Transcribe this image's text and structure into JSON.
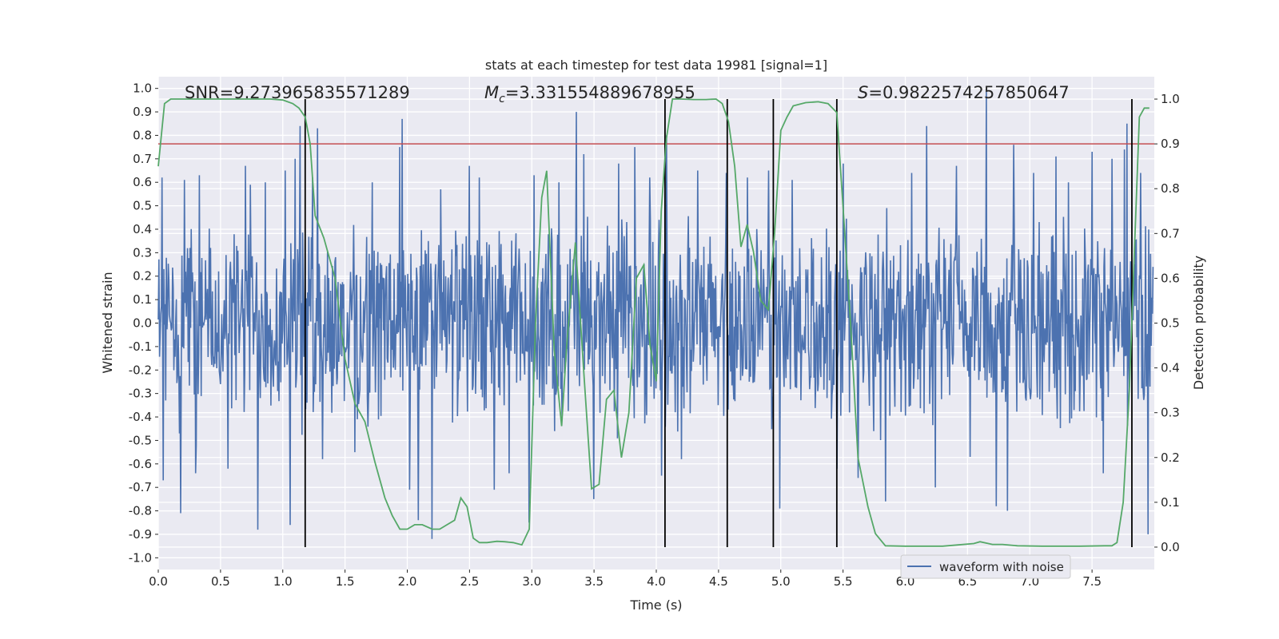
{
  "chart_data": {
    "type": "line",
    "title": "stats at each timestep for test data 19981 [signal=1]",
    "xlabel": "Time (s)",
    "ylabel": "Whitened strain",
    "y2label": "Detection probability",
    "xlim": [
      0.0,
      8.0
    ],
    "ylim": [
      -1.05,
      1.05
    ],
    "y2lim": [
      -0.05,
      1.05
    ],
    "xticks": [
      "0.0",
      "0.5",
      "1.0",
      "1.5",
      "2.0",
      "2.5",
      "3.0",
      "3.5",
      "4.0",
      "4.5",
      "5.0",
      "5.5",
      "6.0",
      "6.5",
      "7.0",
      "7.5"
    ],
    "yticks": [
      "-1.0",
      "-0.9",
      "-0.8",
      "-0.7",
      "-0.6",
      "-0.5",
      "-0.4",
      "-0.3",
      "-0.2",
      "-0.1",
      "0.0",
      "0.1",
      "0.2",
      "0.3",
      "0.4",
      "0.5",
      "0.6",
      "0.7",
      "0.8",
      "0.9",
      "1.0"
    ],
    "y2ticks": [
      "0.0",
      "0.1",
      "0.2",
      "0.3",
      "0.4",
      "0.5",
      "0.6",
      "0.7",
      "0.8",
      "0.9",
      "1.0"
    ],
    "annotations": {
      "snr": "SNR=9.273965835571289",
      "mc_symbol": "M",
      "mc_sub": "c",
      "mc_value": "=3.331554889678955",
      "s_symbol": "S",
      "s_value": "=0.9822574257850647"
    },
    "legend": {
      "label": "waveform with noise",
      "placement": "lower-center-right"
    },
    "threshold": {
      "value": 0.9,
      "axis": "y2",
      "color": "#c44e52"
    },
    "vertical_lines": [
      1.18,
      4.07,
      4.57,
      4.94,
      5.45,
      7.82
    ],
    "vertical_line_range_y2": [
      0.0,
      1.0
    ],
    "waveform": {
      "name": "waveform with noise",
      "color": "#4c72b0",
      "n_points": 1600,
      "typical_range": [
        -0.45,
        0.45
      ],
      "spikes": [
        {
          "t": 0.03,
          "v": 0.62
        },
        {
          "t": 0.04,
          "v": -0.67
        },
        {
          "t": 0.17,
          "v": -0.47
        },
        {
          "t": 0.18,
          "v": -0.81
        },
        {
          "t": 0.21,
          "v": 0.61
        },
        {
          "t": 0.3,
          "v": -0.64
        },
        {
          "t": 0.33,
          "v": 0.63
        },
        {
          "t": 0.56,
          "v": -0.62
        },
        {
          "t": 0.7,
          "v": 0.67
        },
        {
          "t": 0.74,
          "v": 0.59
        },
        {
          "t": 0.8,
          "v": -0.88
        },
        {
          "t": 0.86,
          "v": 0.6
        },
        {
          "t": 1.02,
          "v": 0.65
        },
        {
          "t": 1.06,
          "v": -0.86
        },
        {
          "t": 1.1,
          "v": 0.7
        },
        {
          "t": 1.14,
          "v": 0.84
        },
        {
          "t": 1.24,
          "v": 0.62
        },
        {
          "t": 1.28,
          "v": 0.83
        },
        {
          "t": 1.32,
          "v": -0.58
        },
        {
          "t": 1.58,
          "v": -0.55
        },
        {
          "t": 1.72,
          "v": 0.6
        },
        {
          "t": 1.94,
          "v": 0.75
        },
        {
          "t": 1.96,
          "v": 0.87
        },
        {
          "t": 2.02,
          "v": -0.71
        },
        {
          "t": 2.09,
          "v": -0.84
        },
        {
          "t": 2.2,
          "v": -0.92
        },
        {
          "t": 2.27,
          "v": 0.57
        },
        {
          "t": 2.5,
          "v": 0.67
        },
        {
          "t": 2.58,
          "v": 0.62
        },
        {
          "t": 2.7,
          "v": -0.71
        },
        {
          "t": 2.82,
          "v": -0.64
        },
        {
          "t": 2.98,
          "v": -0.85
        },
        {
          "t": 3.02,
          "v": 0.63
        },
        {
          "t": 3.22,
          "v": 0.6
        },
        {
          "t": 3.36,
          "v": 0.9
        },
        {
          "t": 3.42,
          "v": 0.72
        },
        {
          "t": 3.5,
          "v": -0.75
        },
        {
          "t": 3.7,
          "v": 0.68
        },
        {
          "t": 3.83,
          "v": 0.75
        },
        {
          "t": 3.95,
          "v": 0.62
        },
        {
          "t": 4.04,
          "v": -0.65
        },
        {
          "t": 4.08,
          "v": 0.8
        },
        {
          "t": 4.2,
          "v": -0.58
        },
        {
          "t": 4.33,
          "v": 0.65
        },
        {
          "t": 4.56,
          "v": 0.64
        },
        {
          "t": 4.73,
          "v": 0.62
        },
        {
          "t": 4.9,
          "v": 0.65
        },
        {
          "t": 4.99,
          "v": -0.79
        },
        {
          "t": 5.09,
          "v": 0.61
        },
        {
          "t": 5.45,
          "v": -0.62
        },
        {
          "t": 5.5,
          "v": 0.68
        },
        {
          "t": 5.62,
          "v": -0.66
        },
        {
          "t": 5.84,
          "v": -0.76
        },
        {
          "t": 6.05,
          "v": 0.64
        },
        {
          "t": 6.17,
          "v": 0.84
        },
        {
          "t": 6.24,
          "v": -0.7
        },
        {
          "t": 6.41,
          "v": 0.67
        },
        {
          "t": 6.52,
          "v": -0.57
        },
        {
          "t": 6.65,
          "v": 1.0
        },
        {
          "t": 6.73,
          "v": -0.78
        },
        {
          "t": 6.82,
          "v": -0.8
        },
        {
          "t": 6.87,
          "v": 0.76
        },
        {
          "t": 7.03,
          "v": 0.64
        },
        {
          "t": 7.21,
          "v": 0.71
        },
        {
          "t": 7.31,
          "v": 0.6
        },
        {
          "t": 7.5,
          "v": 0.73
        },
        {
          "t": 7.59,
          "v": -0.64
        },
        {
          "t": 7.66,
          "v": 0.7
        },
        {
          "t": 7.76,
          "v": 0.74
        },
        {
          "t": 7.78,
          "v": 0.85
        },
        {
          "t": 7.89,
          "v": 0.64
        },
        {
          "t": 7.95,
          "v": -0.9
        }
      ]
    },
    "detection_probability": {
      "name": "detection probability",
      "color": "#55a868",
      "x": [
        0.0,
        0.05,
        0.1,
        0.3,
        0.6,
        0.9,
        1.0,
        1.08,
        1.13,
        1.18,
        1.22,
        1.26,
        1.33,
        1.42,
        1.5,
        1.58,
        1.66,
        1.74,
        1.82,
        1.88,
        1.94,
        2.0,
        2.06,
        2.12,
        2.2,
        2.26,
        2.32,
        2.38,
        2.43,
        2.48,
        2.53,
        2.58,
        2.64,
        2.72,
        2.78,
        2.85,
        2.92,
        2.98,
        3.03,
        3.08,
        3.12,
        3.18,
        3.24,
        3.28,
        3.35,
        3.42,
        3.48,
        3.54,
        3.6,
        3.66,
        3.72,
        3.78,
        3.84,
        3.9,
        3.95,
        4.0,
        4.04,
        4.08,
        4.13,
        4.2,
        4.3,
        4.4,
        4.48,
        4.53,
        4.58,
        4.63,
        4.68,
        4.73,
        4.78,
        4.84,
        4.9,
        4.95,
        5.0,
        5.05,
        5.1,
        5.2,
        5.3,
        5.38,
        5.45,
        5.5,
        5.56,
        5.62,
        5.7,
        5.76,
        5.84,
        6.0,
        6.3,
        6.55,
        6.6,
        6.7,
        6.78,
        6.9,
        7.1,
        7.4,
        7.6,
        7.66,
        7.7,
        7.75,
        7.8,
        7.84,
        7.88,
        7.92,
        7.96
      ],
      "y": [
        0.85,
        0.99,
        1.0,
        1.0,
        1.0,
        1.0,
        0.998,
        0.99,
        0.98,
        0.96,
        0.9,
        0.74,
        0.69,
        0.6,
        0.42,
        0.32,
        0.28,
        0.19,
        0.11,
        0.07,
        0.04,
        0.04,
        0.05,
        0.05,
        0.04,
        0.04,
        0.05,
        0.06,
        0.11,
        0.09,
        0.02,
        0.01,
        0.01,
        0.013,
        0.012,
        0.01,
        0.005,
        0.04,
        0.5,
        0.78,
        0.84,
        0.44,
        0.27,
        0.45,
        0.68,
        0.38,
        0.13,
        0.14,
        0.33,
        0.35,
        0.2,
        0.3,
        0.6,
        0.63,
        0.45,
        0.37,
        0.75,
        0.91,
        1.0,
        1.0,
        0.999,
        0.999,
        1.0,
        0.99,
        0.95,
        0.85,
        0.67,
        0.72,
        0.66,
        0.55,
        0.53,
        0.7,
        0.93,
        0.96,
        0.985,
        0.992,
        0.994,
        0.99,
        0.97,
        0.76,
        0.5,
        0.2,
        0.09,
        0.03,
        0.003,
        0.002,
        0.002,
        0.008,
        0.012,
        0.006,
        0.006,
        0.003,
        0.002,
        0.002,
        0.003,
        0.003,
        0.01,
        0.1,
        0.35,
        0.66,
        0.96,
        0.98,
        0.98
      ]
    }
  }
}
